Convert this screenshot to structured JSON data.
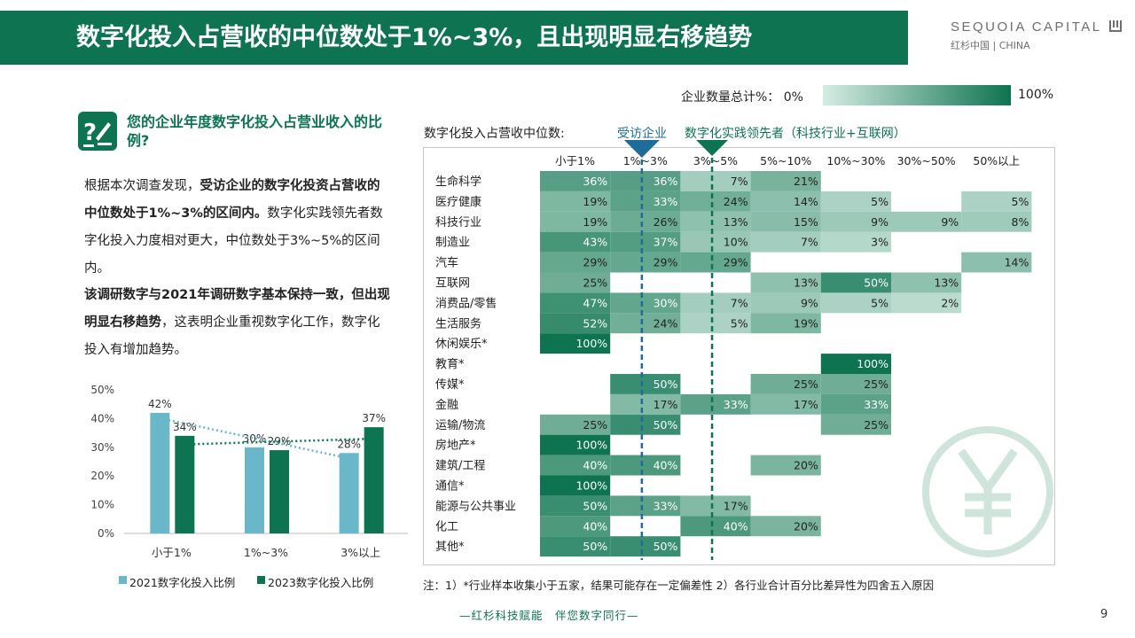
{
  "header": {
    "title": "数字化投入占营收的中位数处于1%~3%，且出现明显右移趋势",
    "logo_main": "SEQUOIA CAPITAL",
    "logo_sub": "红杉中国 | CHINA"
  },
  "colors": {
    "brand_green": "#0e7350",
    "teal": "#6ab7c9",
    "marker_blue": "#1f6c9a",
    "heat_low": "#d6ece3",
    "heat_high": "#0e7350"
  },
  "scale_legend": {
    "label": "企业数量总计%： 0%",
    "max": "100%"
  },
  "question": {
    "icon": "question-pen-icon",
    "title": "您的企业年度数字化投入占营业收入的比例?"
  },
  "paragraphs": {
    "p1_pre": "根据本次调查发现，",
    "p1_bold": "受访企业的数字化投资占营收的中位数处于1%~3%的区间内。",
    "p1_post": "数字化实践领先者数字化投入力度相对更大，中位数处于3%~5%的区间内。",
    "p2_bold": "该调研数字与2021年调研数字基本保持一致，但出现明显右移趋势",
    "p2_post": "，这表明企业重视数字化工作，数字化投入有增加趋势。"
  },
  "heatmap_header": {
    "label": "数字化投入占营收中位数:",
    "marker1": "受访企业",
    "marker2": "数字化实践领先者（科技行业+互联网）"
  },
  "footnote": "注：1）*行业样本收集小于五家，结果可能存在一定偏差性 2）各行业合计百分比差异性为四舍五入原因",
  "footer": {
    "slogan": "—红杉科技赋能　伴您数字同行—",
    "page": "9"
  },
  "chart_data": [
    {
      "type": "bar",
      "categories": [
        "小于1%",
        "1%~3%",
        "3%以上"
      ],
      "series": [
        {
          "name": "2021数字化投入比例",
          "values": [
            42,
            30,
            28
          ],
          "color": "#6ab7c9",
          "labels": [
            "42%",
            "30%",
            "28%"
          ]
        },
        {
          "name": "2023数字化投入比例",
          "values": [
            34,
            29,
            37
          ],
          "color": "#0e7350",
          "labels": [
            "34%",
            "29%",
            "37%"
          ]
        }
      ],
      "y_ticks": [
        "50%",
        "40%",
        "30%",
        "20%",
        "10%",
        "0%"
      ],
      "ylim": [
        0,
        50
      ],
      "trendlines": true,
      "legend": "bottom"
    },
    {
      "type": "heatmap",
      "columns": [
        "小于1%",
        "1%~3%",
        "3%~5%",
        "5%~10%",
        "10%~30%",
        "30%~50%",
        "50%以上"
      ],
      "rows": [
        {
          "name": "生命科学",
          "values": [
            36,
            36,
            7,
            21,
            null,
            null,
            null
          ]
        },
        {
          "name": "医疗健康",
          "values": [
            19,
            33,
            24,
            14,
            5,
            null,
            5
          ]
        },
        {
          "name": "科技行业",
          "values": [
            19,
            26,
            13,
            15,
            9,
            9,
            8
          ]
        },
        {
          "name": "制造业",
          "values": [
            43,
            37,
            10,
            7,
            3,
            null,
            null
          ]
        },
        {
          "name": "汽车",
          "values": [
            29,
            29,
            29,
            null,
            null,
            null,
            14
          ]
        },
        {
          "name": "互联网",
          "values": [
            25,
            null,
            null,
            13,
            50,
            13,
            null
          ]
        },
        {
          "name": "消费品/零售",
          "values": [
            47,
            30,
            7,
            9,
            5,
            2,
            null
          ]
        },
        {
          "name": "生活服务",
          "values": [
            52,
            24,
            5,
            19,
            null,
            null,
            null
          ]
        },
        {
          "name": "休闲娱乐*",
          "values": [
            100,
            null,
            null,
            null,
            null,
            null,
            null
          ]
        },
        {
          "name": "教育*",
          "values": [
            null,
            null,
            null,
            null,
            100,
            null,
            null
          ]
        },
        {
          "name": "传媒*",
          "values": [
            null,
            50,
            null,
            25,
            25,
            null,
            null
          ]
        },
        {
          "name": "金融",
          "values": [
            null,
            17,
            33,
            17,
            33,
            null,
            null
          ]
        },
        {
          "name": "运输/物流",
          "values": [
            25,
            50,
            null,
            null,
            25,
            null,
            null
          ]
        },
        {
          "name": "房地产*",
          "values": [
            100,
            null,
            null,
            null,
            null,
            null,
            null
          ]
        },
        {
          "name": "建筑/工程",
          "values": [
            40,
            40,
            null,
            20,
            null,
            null,
            null
          ]
        },
        {
          "name": "通信*",
          "values": [
            100,
            null,
            null,
            null,
            null,
            null,
            null
          ]
        },
        {
          "name": "能源与公共事业",
          "values": [
            50,
            33,
            17,
            null,
            null,
            null,
            null
          ]
        },
        {
          "name": "化工",
          "values": [
            40,
            null,
            40,
            20,
            null,
            null,
            null
          ]
        },
        {
          "name": "其他*",
          "values": [
            50,
            50,
            null,
            null,
            null,
            null,
            null
          ]
        }
      ]
    }
  ]
}
